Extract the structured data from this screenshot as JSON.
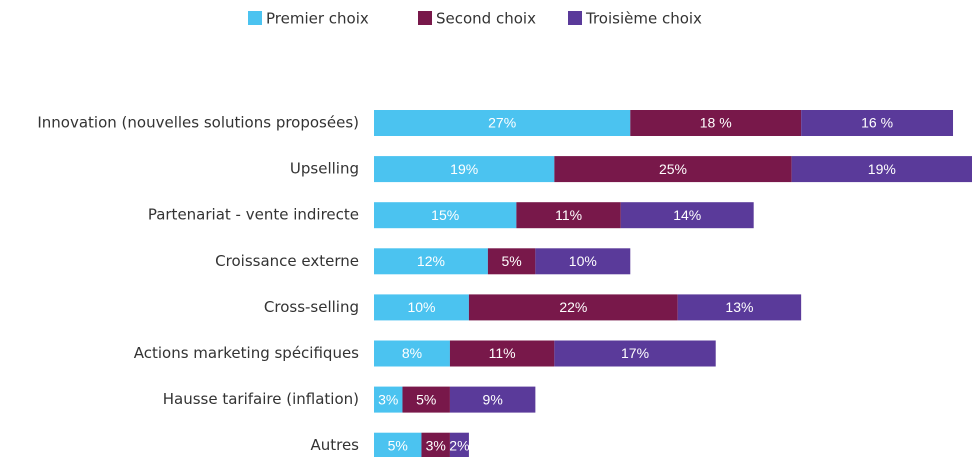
{
  "chart_data": {
    "type": "stacked-bar-horizontal",
    "categories": [
      "Innovation (nouvelles solutions proposées)",
      "Upselling",
      "Partenariat - vente indirecte",
      "Croissance externe",
      "Cross-selling",
      "Actions marketing spécifiques",
      "Hausse tarifaire (inflation)",
      "Autres"
    ],
    "series": [
      {
        "name": "Premier choix",
        "color": "#4bc3f0",
        "values": [
          27,
          19,
          15,
          12,
          10,
          8,
          3,
          5
        ],
        "value_labels": [
          "27%",
          "19%",
          "15%",
          "12%",
          "10%",
          "8%",
          "3%",
          "5%"
        ]
      },
      {
        "name": "Second choix",
        "color": "#78184a",
        "values": [
          18,
          25,
          11,
          5,
          22,
          11,
          5,
          3
        ],
        "value_labels": [
          "18 %",
          "25%",
          "11%",
          "5%",
          "22%",
          "11%",
          "5%",
          "3%"
        ]
      },
      {
        "name": "Troisième choix",
        "color": "#5a3a9a",
        "values": [
          16,
          19,
          14,
          10,
          13,
          17,
          9,
          2
        ],
        "value_labels": [
          "16 %",
          "19%",
          "14%",
          "10%",
          "13%",
          "17%",
          "9%",
          "2%"
        ]
      }
    ],
    "legend": "top"
  }
}
